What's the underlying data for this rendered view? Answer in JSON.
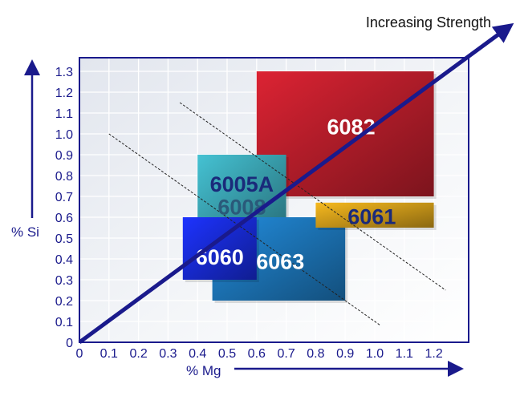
{
  "chart_data": {
    "type": "area",
    "xlabel": "% Mg",
    "ylabel": "% Si",
    "xlim": [
      0,
      1.3
    ],
    "ylim": [
      0,
      1.35
    ],
    "x_ticks": [
      "0",
      "0.1",
      "0.2",
      "0.3",
      "0.4",
      "0.5",
      "0.6",
      "0.7",
      "0.8",
      "0.9",
      "1.0",
      "1.1",
      "1.2"
    ],
    "y_ticks": [
      "0",
      "0.1",
      "0.2",
      "0.3",
      "0.4",
      "0.5",
      "0.6",
      "0.7",
      "0.8",
      "0.9",
      "1.0",
      "1.1",
      "1.2",
      "1.3"
    ],
    "grid": true,
    "regions": [
      {
        "name": "6082",
        "mg": [
          0.6,
          1.2
        ],
        "si": [
          0.7,
          1.3
        ],
        "color": "#c8202e"
      },
      {
        "name": "6005A",
        "mg": [
          0.4,
          0.7
        ],
        "si": [
          0.5,
          0.9
        ],
        "color": "#3fb0c0"
      },
      {
        "name": "6008",
        "mg": [
          0.4,
          0.7
        ],
        "si": [
          0.5,
          0.9
        ],
        "color": "#3fb0c0"
      },
      {
        "name": "6063",
        "mg": [
          0.45,
          0.9
        ],
        "si": [
          0.2,
          0.6
        ],
        "color": "#1f7fc8"
      },
      {
        "name": "6060",
        "mg": [
          0.35,
          0.6
        ],
        "si": [
          0.3,
          0.6
        ],
        "color": "#1a2ee8"
      },
      {
        "name": "6061",
        "mg": [
          0.8,
          1.2
        ],
        "si": [
          0.55,
          0.67
        ],
        "color": "#e0a81c"
      }
    ],
    "dashed_lines": [
      {
        "from": [
          0.1,
          1.0
        ],
        "to": [
          1.02,
          0.08
        ]
      },
      {
        "from": [
          0.34,
          1.15
        ],
        "to": [
          1.24,
          0.25
        ]
      }
    ],
    "arrow": {
      "label": "Increasing Strength",
      "from": [
        0,
        0
      ],
      "to": [
        1.46,
        1.52
      ]
    }
  }
}
